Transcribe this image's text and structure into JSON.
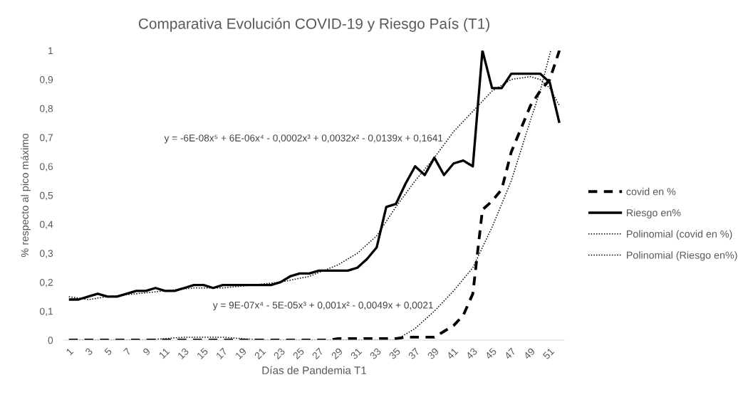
{
  "chart_data": {
    "type": "line",
    "title": "Comparativa Evolución COVID-19 y Riesgo País (T1)",
    "xlabel": "Días de Pandemia T1",
    "ylabel": "% respecto al pico máximo",
    "x": [
      1,
      2,
      3,
      4,
      5,
      6,
      7,
      8,
      9,
      10,
      11,
      12,
      13,
      14,
      15,
      16,
      17,
      18,
      19,
      20,
      21,
      22,
      23,
      24,
      25,
      26,
      27,
      28,
      29,
      30,
      31,
      32,
      33,
      34,
      35,
      36,
      37,
      38,
      39,
      40,
      41,
      42,
      43,
      44,
      45,
      46,
      47,
      48,
      49,
      50,
      51,
      52
    ],
    "xlim": [
      0.5,
      52.5
    ],
    "xticks": [
      1,
      3,
      5,
      7,
      9,
      11,
      13,
      15,
      17,
      19,
      21,
      23,
      25,
      27,
      29,
      31,
      33,
      35,
      37,
      39,
      41,
      43,
      45,
      47,
      49,
      51
    ],
    "ylim": [
      0,
      1
    ],
    "yticks": [
      0,
      {
        "value": 0.1,
        "label": "0,1"
      },
      {
        "value": 0.2,
        "label": "0,2"
      },
      {
        "value": 0.3,
        "label": "0,3"
      },
      {
        "value": 0.4,
        "label": "0,4"
      },
      {
        "value": 0.5,
        "label": "0,5"
      },
      {
        "value": 0.6,
        "label": "0,6"
      },
      {
        "value": 0.7,
        "label": "0,7"
      },
      {
        "value": 0.8,
        "label": "0,8"
      },
      {
        "value": 0.9,
        "label": "0,9"
      },
      1
    ],
    "series": [
      {
        "name": "covid en %",
        "color": "#000000",
        "line_style": "dashed",
        "values": [
          0,
          0,
          0,
          0,
          0,
          0,
          0,
          0,
          0,
          0,
          0,
          0,
          0,
          0,
          0,
          0,
          0,
          0,
          0,
          0,
          0,
          0,
          0,
          0,
          0,
          0,
          0,
          0,
          0.005,
          0.005,
          0.005,
          0.005,
          0.005,
          0.005,
          0.005,
          0.01,
          0.01,
          0.01,
          0.01,
          0.03,
          0.05,
          0.085,
          0.16,
          0.45,
          0.48,
          0.52,
          0.65,
          0.73,
          0.81,
          0.86,
          0.9,
          1.0
        ]
      },
      {
        "name": "Riesgo en%",
        "color": "#000000",
        "line_style": "solid",
        "values": [
          0.14,
          0.14,
          0.15,
          0.16,
          0.15,
          0.15,
          0.16,
          0.17,
          0.17,
          0.18,
          0.17,
          0.17,
          0.18,
          0.19,
          0.19,
          0.18,
          0.19,
          0.19,
          0.19,
          0.19,
          0.19,
          0.19,
          0.2,
          0.22,
          0.23,
          0.23,
          0.24,
          0.24,
          0.24,
          0.24,
          0.25,
          0.28,
          0.32,
          0.46,
          0.47,
          0.54,
          0.6,
          0.57,
          0.63,
          0.57,
          0.61,
          0.62,
          0.6,
          1.0,
          0.87,
          0.87,
          0.92,
          0.92,
          0.92,
          0.92,
          0.89,
          0.75
        ]
      },
      {
        "name": "Polinomial (covid en %)",
        "color": "#000000",
        "line_style": "dotted",
        "type": "line",
        "x": [
          1,
          5,
          9,
          13,
          17,
          21,
          25,
          29,
          33,
          35,
          37,
          39,
          41,
          43,
          45,
          47,
          49,
          50,
          51.1
        ],
        "values": [
          0,
          0,
          0,
          0.01,
          0.01,
          0,
          0,
          0,
          0,
          0,
          0.04,
          0.1,
          0.17,
          0.25,
          0.39,
          0.55,
          0.76,
          0.86,
          1.0
        ]
      },
      {
        "name": "Polinomial (Riesgo en%)",
        "color": "#000000",
        "line_style": "dotted",
        "type": "line",
        "x": [
          1,
          3,
          5,
          8,
          11,
          14,
          17,
          20,
          23,
          26,
          29,
          31,
          33,
          35,
          37,
          39,
          41,
          43,
          45,
          47,
          49,
          50,
          51,
          52
        ],
        "values": [
          0.15,
          0.14,
          0.15,
          0.16,
          0.17,
          0.18,
          0.18,
          0.19,
          0.2,
          0.22,
          0.26,
          0.3,
          0.36,
          0.46,
          0.55,
          0.63,
          0.72,
          0.79,
          0.86,
          0.9,
          0.91,
          0.9,
          0.87,
          0.81
        ]
      }
    ],
    "legend": "right",
    "annotations": [
      "y = -6E-08x⁵ + 6E-06x⁴ - 0,0002x³ + 0,0032x² - 0,0139x + 0,1641",
      "y = 9E-07x⁴ - 5E-05x³ + 0,001x² - 0,0049x + 0,0021"
    ]
  }
}
